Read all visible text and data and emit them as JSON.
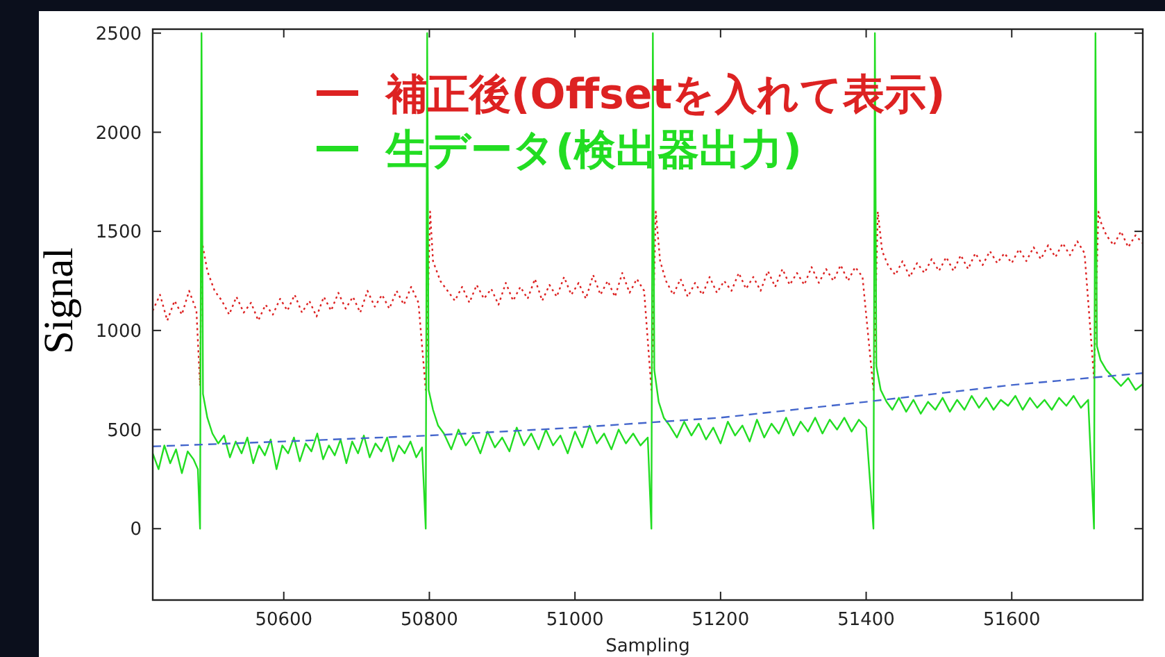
{
  "chart_data": {
    "type": "line",
    "xlabel": "Sampling",
    "ylabel": "Signal",
    "xlim": [
      50420,
      51780
    ],
    "ylim": [
      -360,
      2520
    ],
    "xticks": [
      50600,
      50800,
      51000,
      51200,
      51400,
      51600
    ],
    "yticks": [
      0,
      500,
      1000,
      1500,
      2000,
      2500
    ],
    "grid": false,
    "legend": "top",
    "marker": "none",
    "series": [
      {
        "name": "補正後(Offsetを入れて表示)",
        "color": "#dd2222",
        "line_style": "dotted",
        "x": [
          50420,
          50430,
          50440,
          50450,
          50460,
          50470,
          50480,
          50485,
          50487,
          50495,
          50505,
          50515,
          50525,
          50535,
          50545,
          50555,
          50565,
          50575,
          50585,
          50595,
          50605,
          50615,
          50625,
          50635,
          50645,
          50655,
          50665,
          50675,
          50685,
          50695,
          50705,
          50715,
          50725,
          50735,
          50745,
          50755,
          50765,
          50775,
          50785,
          50795,
          50801,
          50805,
          50815,
          50825,
          50835,
          50845,
          50855,
          50865,
          50875,
          50885,
          50895,
          50905,
          50915,
          50925,
          50935,
          50945,
          50955,
          50965,
          50975,
          50985,
          50995,
          51005,
          51015,
          51025,
          51035,
          51045,
          51055,
          51065,
          51075,
          51085,
          51095,
          51105,
          51111,
          51117,
          51125,
          51135,
          51145,
          51155,
          51165,
          51175,
          51185,
          51195,
          51205,
          51215,
          51225,
          51235,
          51245,
          51255,
          51265,
          51275,
          51285,
          51295,
          51305,
          51315,
          51325,
          51335,
          51345,
          51355,
          51365,
          51375,
          51385,
          51395,
          51410,
          51416,
          51422,
          51430,
          51440,
          51450,
          51460,
          51470,
          51480,
          51490,
          51500,
          51510,
          51520,
          51530,
          51540,
          51550,
          51560,
          51570,
          51580,
          51590,
          51600,
          51610,
          51620,
          51630,
          51640,
          51650,
          51660,
          51670,
          51680,
          51690,
          51700,
          51713,
          51719,
          51722,
          51730,
          51740,
          51750,
          51760,
          51770,
          51780
        ],
        "values": [
          1100,
          1180,
          1050,
          1150,
          1080,
          1200,
          1100,
          720,
          1460,
          1300,
          1200,
          1150,
          1080,
          1170,
          1090,
          1140,
          1050,
          1130,
          1080,
          1160,
          1100,
          1180,
          1090,
          1150,
          1070,
          1170,
          1100,
          1190,
          1110,
          1170,
          1090,
          1200,
          1120,
          1180,
          1110,
          1200,
          1130,
          1220,
          1140,
          700,
          1600,
          1350,
          1250,
          1200,
          1150,
          1220,
          1140,
          1230,
          1160,
          1210,
          1130,
          1240,
          1150,
          1220,
          1160,
          1260,
          1150,
          1230,
          1170,
          1270,
          1180,
          1240,
          1160,
          1280,
          1180,
          1250,
          1170,
          1290,
          1190,
          1260,
          1200,
          700,
          1600,
          1350,
          1250,
          1180,
          1260,
          1170,
          1240,
          1180,
          1270,
          1190,
          1250,
          1200,
          1290,
          1210,
          1270,
          1200,
          1300,
          1220,
          1310,
          1230,
          1290,
          1230,
          1320,
          1240,
          1310,
          1250,
          1330,
          1250,
          1320,
          1270,
          700,
          1600,
          1400,
          1330,
          1280,
          1350,
          1270,
          1340,
          1290,
          1360,
          1300,
          1370,
          1300,
          1380,
          1310,
          1390,
          1330,
          1400,
          1340,
          1390,
          1340,
          1410,
          1350,
          1420,
          1360,
          1430,
          1370,
          1440,
          1380,
          1450,
          1390,
          760,
          1600,
          1550,
          1480,
          1430,
          1500,
          1420,
          1480,
          1440
        ]
      },
      {
        "name": "生データ(検出器出力)",
        "color": "#22dd22",
        "line_style": "solid",
        "x": [
          50420,
          50428,
          50436,
          50444,
          50452,
          50460,
          50468,
          50476,
          50482,
          50485,
          50487,
          50489,
          50495,
          50502,
          50510,
          50518,
          50526,
          50534,
          50542,
          50550,
          50558,
          50566,
          50574,
          50582,
          50590,
          50598,
          50606,
          50614,
          50622,
          50630,
          50638,
          50646,
          50654,
          50662,
          50670,
          50678,
          50686,
          50694,
          50702,
          50710,
          50718,
          50726,
          50734,
          50742,
          50750,
          50758,
          50766,
          50774,
          50782,
          50790,
          50795,
          50797,
          50799,
          50805,
          50812,
          50820,
          50830,
          50840,
          50850,
          50860,
          50870,
          50880,
          50890,
          50900,
          50910,
          50920,
          50930,
          50940,
          50950,
          50960,
          50970,
          50980,
          50990,
          51000,
          51010,
          51020,
          51030,
          51040,
          51050,
          51060,
          51070,
          51080,
          51090,
          51100,
          51105,
          51107,
          51109,
          51115,
          51122,
          51130,
          51140,
          51150,
          51160,
          51170,
          51180,
          51190,
          51200,
          51210,
          51220,
          51230,
          51240,
          51250,
          51260,
          51270,
          51280,
          51290,
          51300,
          51310,
          51320,
          51330,
          51340,
          51350,
          51360,
          51370,
          51380,
          51390,
          51400,
          51410,
          51412,
          51414,
          51420,
          51428,
          51436,
          51445,
          51455,
          51465,
          51475,
          51485,
          51495,
          51505,
          51515,
          51525,
          51535,
          51545,
          51555,
          51565,
          51575,
          51585,
          51595,
          51605,
          51615,
          51625,
          51635,
          51645,
          51655,
          51665,
          51675,
          51685,
          51695,
          51705,
          51713,
          51715,
          51717,
          51722,
          51730,
          51740,
          51750,
          51760,
          51770,
          51780
        ],
        "values": [
          380,
          300,
          420,
          330,
          400,
          280,
          390,
          350,
          300,
          0,
          2500,
          680,
          560,
          480,
          430,
          470,
          360,
          440,
          380,
          460,
          330,
          420,
          370,
          450,
          300,
          420,
          380,
          460,
          340,
          430,
          390,
          480,
          350,
          420,
          370,
          450,
          330,
          440,
          380,
          470,
          360,
          430,
          390,
          460,
          340,
          420,
          380,
          440,
          360,
          410,
          0,
          2500,
          700,
          600,
          520,
          480,
          400,
          500,
          420,
          470,
          380,
          490,
          410,
          460,
          390,
          510,
          420,
          480,
          400,
          500,
          420,
          470,
          380,
          490,
          410,
          520,
          430,
          480,
          400,
          500,
          430,
          480,
          420,
          460,
          0,
          2500,
          800,
          640,
          560,
          520,
          460,
          540,
          470,
          530,
          450,
          510,
          430,
          540,
          470,
          520,
          440,
          550,
          460,
          530,
          480,
          560,
          470,
          540,
          490,
          560,
          480,
          550,
          500,
          560,
          490,
          550,
          510,
          0,
          2500,
          820,
          700,
          640,
          600,
          660,
          590,
          650,
          580,
          640,
          600,
          660,
          590,
          650,
          600,
          670,
          610,
          660,
          600,
          650,
          620,
          670,
          600,
          660,
          610,
          650,
          600,
          660,
          620,
          670,
          610,
          650,
          0,
          2500,
          920,
          850,
          800,
          760,
          720,
          760,
          700,
          730
        ]
      },
      {
        "color": "#4466cc",
        "line_style": "dashed",
        "x": [
          50420,
          50600,
          50800,
          51000,
          51200,
          51400,
          51600,
          51780
        ],
        "values": [
          415,
          440,
          470,
          510,
          560,
          640,
          725,
          785
        ]
      }
    ]
  }
}
